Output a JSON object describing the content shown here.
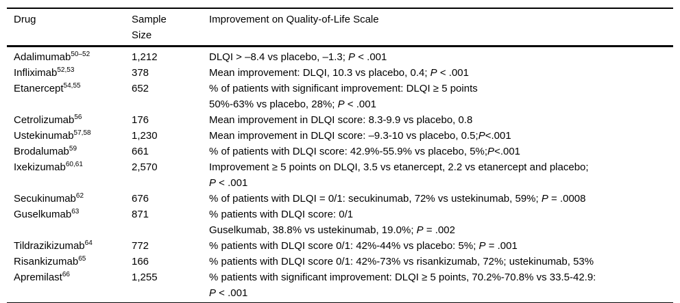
{
  "table": {
    "header": {
      "drug": "Drug",
      "sample_size": "Sample\nSize",
      "improvement": "Improvement on Quality-of-Life Scale"
    },
    "rows": [
      {
        "drug": "Adalimumab",
        "refs": "50–52",
        "sample_size": "1,212",
        "improvement": [
          "DLQI > –8.4 vs placebo, –1.3; *P* < .001"
        ]
      },
      {
        "drug": "Infliximab",
        "refs": "52,53",
        "sample_size": "378",
        "improvement": [
          "Mean improvement: DLQI, 10.3 vs placebo, 0.4; *P* < .001"
        ]
      },
      {
        "drug": "Etanercept",
        "refs": "54,55",
        "sample_size": "652",
        "improvement": [
          "% of patients with significant improvement: DLQI ≥ 5 points",
          "50%-63% vs placebo, 28%; *P* < .001"
        ]
      },
      {
        "drug": "Cetrolizumab",
        "refs": "56",
        "sample_size": "176",
        "improvement": [
          "Mean improvement in DLQI score: 8.3-9.9 vs placebo, 0.8"
        ]
      },
      {
        "drug": "Ustekinumab",
        "refs": "57,58",
        "sample_size": "1,230",
        "improvement": [
          "Mean improvement in DLQI score: –9.3-10 vs placebo, 0.5;*P*<.001"
        ]
      },
      {
        "drug": "Brodalumab",
        "refs": "59",
        "sample_size": "661",
        "improvement": [
          "% of patients with DLQI score: 42.9%-55.9% vs placebo, 5%;*P*<.001"
        ]
      },
      {
        "drug": "Ixekizumab",
        "refs": "60,61",
        "sample_size": "2,570",
        "improvement": [
          "Improvement ≥ 5 points on DLQI, 3.5 vs etanercept, 2.2 vs etanercept and placebo;",
          "*P* < .001"
        ]
      },
      {
        "drug": "Secukinumab",
        "refs": "62",
        "sample_size": "676",
        "improvement": [
          "% of patients with DLQI = 0/1: secukinumab, 72% vs ustekinumab, 59%; *P* = .0008"
        ]
      },
      {
        "drug": "Guselkumab",
        "refs": "63",
        "sample_size": "871",
        "improvement": [
          "% patients with DLQI score: 0/1",
          "Guselkumab, 38.8% vs ustekinumab, 19.0%; *P* = .002"
        ]
      },
      {
        "drug": "Tildrazikizumab",
        "refs": "64",
        "sample_size": "772",
        "improvement": [
          "% patients with DLQI score 0/1: 42%-44% vs placebo: 5%; *P* = .001"
        ]
      },
      {
        "drug": "Risankizumab",
        "refs": "65",
        "sample_size": "166",
        "improvement": [
          "% patients with DLQI score 0/1: 42%-73% vs risankizumab, 72%; ustekinumab, 53%"
        ]
      },
      {
        "drug": "Apremilast",
        "refs": "66",
        "sample_size": "1,255",
        "improvement": [
          "% patients with significant improvement: DLQI ≥ 5 points, 70.2%-70.8% vs 33.5-42.9:",
          "*P* < .001"
        ]
      }
    ]
  },
  "colors": {
    "text": "#000000",
    "background": "#ffffff",
    "rule": "#000000"
  }
}
